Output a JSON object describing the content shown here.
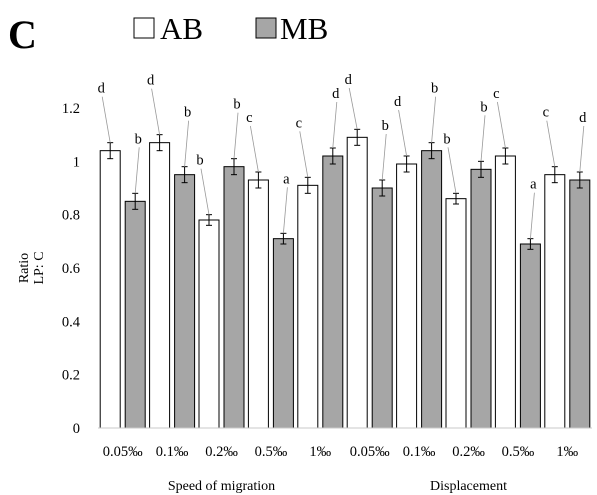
{
  "chart_data": {
    "type": "bar",
    "panel_label": "C",
    "ylabel_line1": "Ratio",
    "ylabel_line2": "LP: C",
    "ylim": [
      0,
      1.2
    ],
    "yticks": [
      "0",
      "0.2",
      "0.4",
      "0.6",
      "0.8",
      "1",
      "1.2"
    ],
    "categories": [
      "0.05‰",
      "0.1‰",
      "0.2‰",
      "0.5‰",
      "1‰",
      "0.05‰",
      "0.1‰",
      "0.2‰",
      "0.5‰",
      "1‰"
    ],
    "groups": [
      {
        "label": "Speed of migration"
      },
      {
        "label": "Displacement"
      }
    ],
    "series": [
      {
        "name": "AB",
        "color": "#ffffff",
        "values": [
          1.04,
          1.07,
          0.78,
          0.93,
          0.91,
          1.09,
          0.99,
          0.86,
          1.02,
          0.95
        ],
        "errors": [
          0.03,
          0.03,
          0.02,
          0.03,
          0.03,
          0.03,
          0.03,
          0.02,
          0.03,
          0.03
        ],
        "letters": [
          "d",
          "d",
          "b",
          "c",
          "c",
          "d",
          "d",
          "b",
          "c",
          "c"
        ]
      },
      {
        "name": "MB",
        "color": "#a6a6a6",
        "values": [
          0.85,
          0.95,
          0.98,
          0.71,
          1.02,
          0.9,
          1.04,
          0.97,
          0.69,
          0.93
        ],
        "errors": [
          0.03,
          0.03,
          0.03,
          0.02,
          0.03,
          0.03,
          0.03,
          0.03,
          0.02,
          0.03
        ],
        "letters": [
          "b",
          "b",
          "b",
          "a",
          "d",
          "b",
          "b",
          "b",
          "a",
          "d"
        ]
      }
    ],
    "legend_position": "top",
    "grid": false
  }
}
